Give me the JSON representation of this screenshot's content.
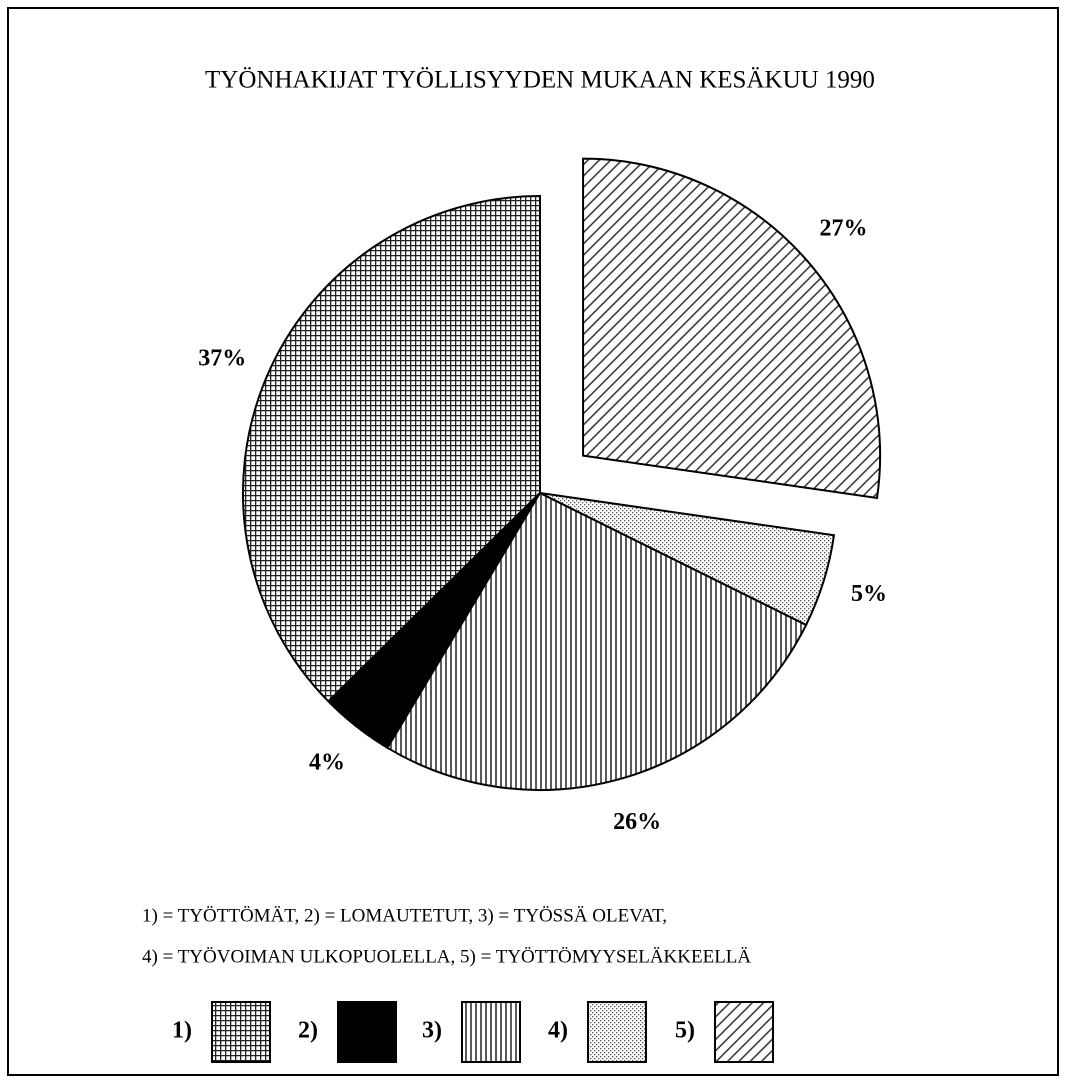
{
  "chart_data": {
    "type": "pie",
    "title": "TYÖNHAKIJAT TYÖLLISYYDEN MUKAAN KESÄKUU 1990",
    "categories": [
      "1)",
      "2)",
      "3)",
      "4)",
      "5)"
    ],
    "values": [
      37,
      4,
      26,
      5,
      27
    ],
    "value_labels": [
      "37%",
      "4%",
      "26%",
      "5%",
      "27%"
    ],
    "patterns": [
      "grid",
      "solid",
      "vertical",
      "dots",
      "diagonal"
    ],
    "explode": [
      false,
      false,
      false,
      false,
      true
    ],
    "legend_note": [
      "1) = TYÖTTÖMÄT, 2) = LOMAUTETUT, 3) = TYÖSSÄ OLEVAT,",
      "4) = TYÖVOIMAN ULKOPUOLELLA, 5) = TYÖTTÖMYYSELÄKKEELLÄ"
    ]
  }
}
